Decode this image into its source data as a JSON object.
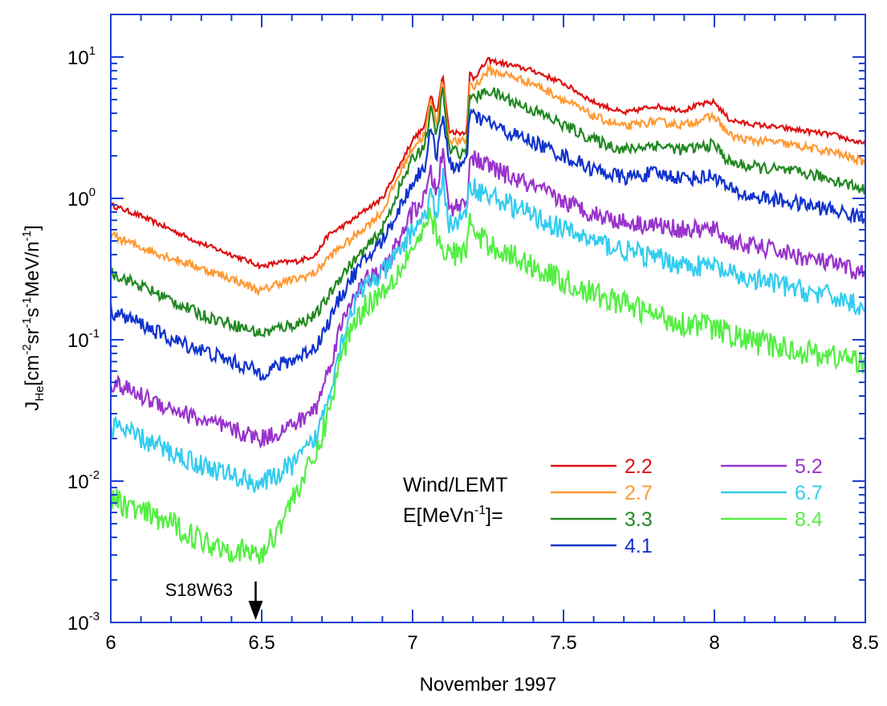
{
  "chart_data": {
    "type": "line",
    "title": "",
    "xlabel": "November 1997",
    "ylabel": {
      "main": "J",
      "sub": "He",
      "unit_parts": [
        "[cm",
        "-2",
        "sr",
        "-1",
        "s",
        "-1",
        "MeV/n",
        "-1",
        "]"
      ]
    },
    "xlim": [
      6,
      8.5
    ],
    "ylim": [
      0.001,
      20
    ],
    "yscale": "log",
    "x_ticks": [
      "6",
      "6.5",
      "7",
      "7.5",
      "8",
      "8.5"
    ],
    "x_tick_values": [
      6,
      6.5,
      7,
      7.5,
      8,
      8.5
    ],
    "y_ticks": [
      {
        "base": "10",
        "exp": "-3",
        "value": 0.001
      },
      {
        "base": "10",
        "exp": "-2",
        "value": 0.01
      },
      {
        "base": "10",
        "exp": "-1",
        "value": 0.1
      },
      {
        "base": "10",
        "exp": "0",
        "value": 1
      },
      {
        "base": "10",
        "exp": "1",
        "value": 10
      }
    ],
    "legend": {
      "placement": "lower-right",
      "title_line1": "Wind/LEMT",
      "title_line2_pre": "E[MeVn",
      "title_line2_sup": "-1",
      "title_line2_post": "]="
    },
    "annotation": {
      "text": "S18W63",
      "x": 6.48
    },
    "series": [
      {
        "name": "2.2",
        "color": "#dd1111",
        "x": [
          6.0,
          6.1,
          6.2,
          6.3,
          6.4,
          6.5,
          6.55,
          6.62,
          6.68,
          6.72,
          6.76,
          6.8,
          6.85,
          6.9,
          6.95,
          7.0,
          7.04,
          7.06,
          7.08,
          7.1,
          7.12,
          7.16,
          7.18,
          7.19,
          7.2,
          7.25,
          7.3,
          7.4,
          7.5,
          7.6,
          7.7,
          7.8,
          7.9,
          7.95,
          8.0,
          8.05,
          8.1,
          8.2,
          8.3,
          8.4,
          8.5
        ],
        "values": [
          0.9,
          0.75,
          0.6,
          0.48,
          0.4,
          0.33,
          0.35,
          0.36,
          0.4,
          0.55,
          0.62,
          0.7,
          0.85,
          1.0,
          1.6,
          2.6,
          3.2,
          5.5,
          4.0,
          7.5,
          3.0,
          2.9,
          3.0,
          8.0,
          7.0,
          9.5,
          9.0,
          8.0,
          6.5,
          4.8,
          4.0,
          4.5,
          4.2,
          4.6,
          4.8,
          3.6,
          3.4,
          3.2,
          3.0,
          2.8,
          2.4
        ]
      },
      {
        "name": "2.7",
        "color": "#ff9933",
        "x": [
          6.0,
          6.1,
          6.2,
          6.3,
          6.4,
          6.5,
          6.55,
          6.62,
          6.68,
          6.72,
          6.76,
          6.8,
          6.85,
          6.9,
          6.95,
          7.0,
          7.04,
          7.06,
          7.08,
          7.1,
          7.12,
          7.16,
          7.18,
          7.19,
          7.2,
          7.25,
          7.3,
          7.4,
          7.5,
          7.6,
          7.7,
          7.8,
          7.9,
          7.95,
          8.0,
          8.05,
          8.1,
          8.2,
          8.3,
          8.4,
          8.5
        ],
        "values": [
          0.55,
          0.45,
          0.38,
          0.32,
          0.27,
          0.22,
          0.25,
          0.27,
          0.3,
          0.38,
          0.45,
          0.52,
          0.65,
          0.8,
          1.4,
          2.3,
          2.8,
          5.0,
          3.4,
          7.0,
          2.6,
          2.5,
          2.6,
          7.0,
          6.0,
          8.0,
          7.6,
          6.5,
          5.0,
          3.8,
          3.2,
          3.5,
          3.3,
          3.6,
          3.8,
          2.8,
          2.6,
          2.5,
          2.3,
          2.1,
          1.8
        ]
      },
      {
        "name": "3.3",
        "color": "#228822",
        "x": [
          6.0,
          6.1,
          6.2,
          6.3,
          6.4,
          6.5,
          6.55,
          6.62,
          6.68,
          6.72,
          6.76,
          6.8,
          6.85,
          6.9,
          6.95,
          7.0,
          7.04,
          7.06,
          7.08,
          7.1,
          7.12,
          7.16,
          7.18,
          7.19,
          7.2,
          7.25,
          7.3,
          7.4,
          7.5,
          7.6,
          7.7,
          7.8,
          7.9,
          7.95,
          8.0,
          8.05,
          8.1,
          8.2,
          8.3,
          8.4,
          8.5
        ],
        "values": [
          0.3,
          0.24,
          0.19,
          0.15,
          0.13,
          0.11,
          0.12,
          0.13,
          0.15,
          0.2,
          0.28,
          0.35,
          0.45,
          0.6,
          1.1,
          1.9,
          2.4,
          4.2,
          2.8,
          6.0,
          2.2,
          2.1,
          2.2,
          6.0,
          5.0,
          5.8,
          5.2,
          4.2,
          3.3,
          2.6,
          2.2,
          2.4,
          2.2,
          2.3,
          2.4,
          1.8,
          1.7,
          1.6,
          1.5,
          1.35,
          1.15
        ]
      },
      {
        "name": "4.1",
        "color": "#1133cc",
        "x": [
          6.0,
          6.1,
          6.2,
          6.3,
          6.4,
          6.5,
          6.55,
          6.62,
          6.68,
          6.72,
          6.76,
          6.8,
          6.85,
          6.9,
          6.95,
          7.0,
          7.04,
          7.06,
          7.08,
          7.1,
          7.12,
          7.16,
          7.18,
          7.19,
          7.2,
          7.25,
          7.3,
          7.4,
          7.5,
          7.6,
          7.7,
          7.8,
          7.9,
          7.95,
          8.0,
          8.05,
          8.1,
          8.2,
          8.3,
          8.4,
          8.5
        ],
        "values": [
          0.16,
          0.13,
          0.1,
          0.085,
          0.07,
          0.058,
          0.065,
          0.075,
          0.09,
          0.13,
          0.2,
          0.28,
          0.38,
          0.5,
          0.8,
          1.3,
          1.7,
          3.0,
          2.0,
          4.2,
          1.7,
          1.7,
          1.8,
          4.3,
          3.8,
          3.5,
          3.0,
          2.5,
          2.0,
          1.6,
          1.4,
          1.5,
          1.4,
          1.4,
          1.45,
          1.15,
          1.05,
          0.98,
          0.9,
          0.82,
          0.72
        ]
      },
      {
        "name": "5.2",
        "color": "#9933cc",
        "x": [
          6.0,
          6.1,
          6.2,
          6.3,
          6.4,
          6.5,
          6.55,
          6.62,
          6.68,
          6.72,
          6.76,
          6.8,
          6.85,
          6.9,
          6.95,
          7.0,
          7.04,
          7.06,
          7.08,
          7.1,
          7.12,
          7.16,
          7.18,
          7.19,
          7.2,
          7.25,
          7.3,
          7.4,
          7.5,
          7.6,
          7.7,
          7.8,
          7.9,
          7.95,
          8.0,
          8.05,
          8.1,
          8.2,
          8.3,
          8.4,
          8.5
        ],
        "values": [
          0.05,
          0.04,
          0.033,
          0.027,
          0.023,
          0.02,
          0.022,
          0.026,
          0.033,
          0.06,
          0.12,
          0.2,
          0.27,
          0.3,
          0.48,
          0.8,
          1.0,
          1.5,
          1.1,
          2.2,
          0.85,
          0.9,
          0.95,
          2.0,
          1.9,
          1.7,
          1.5,
          1.2,
          0.95,
          0.78,
          0.68,
          0.65,
          0.6,
          0.6,
          0.6,
          0.5,
          0.47,
          0.43,
          0.38,
          0.34,
          0.29
        ]
      },
      {
        "name": "6.7",
        "color": "#33ccee",
        "x": [
          6.0,
          6.1,
          6.2,
          6.3,
          6.4,
          6.5,
          6.55,
          6.62,
          6.68,
          6.72,
          6.76,
          6.8,
          6.85,
          6.9,
          6.95,
          7.0,
          7.04,
          7.06,
          7.08,
          7.1,
          7.12,
          7.16,
          7.18,
          7.19,
          7.2,
          7.25,
          7.3,
          7.4,
          7.5,
          7.6,
          7.7,
          7.8,
          7.9,
          7.95,
          8.0,
          8.05,
          8.1,
          8.2,
          8.3,
          8.4,
          8.5
        ],
        "values": [
          0.025,
          0.02,
          0.016,
          0.013,
          0.011,
          0.0095,
          0.011,
          0.014,
          0.02,
          0.04,
          0.09,
          0.17,
          0.25,
          0.29,
          0.4,
          0.6,
          0.75,
          1.0,
          0.75,
          1.5,
          0.65,
          0.7,
          0.75,
          1.4,
          1.2,
          1.05,
          0.95,
          0.75,
          0.6,
          0.5,
          0.43,
          0.38,
          0.34,
          0.33,
          0.33,
          0.29,
          0.27,
          0.25,
          0.22,
          0.2,
          0.17
        ]
      },
      {
        "name": "8.4",
        "color": "#55ee44",
        "x": [
          6.0,
          6.1,
          6.2,
          6.3,
          6.4,
          6.5,
          6.55,
          6.62,
          6.68,
          6.72,
          6.76,
          6.8,
          6.85,
          6.9,
          6.95,
          7.0,
          7.04,
          7.06,
          7.08,
          7.1,
          7.12,
          7.16,
          7.18,
          7.19,
          7.2,
          7.25,
          7.3,
          7.4,
          7.5,
          7.6,
          7.7,
          7.8,
          7.9,
          7.95,
          8.0,
          8.05,
          8.1,
          8.2,
          8.3,
          8.4,
          8.5
        ],
        "values": [
          0.0075,
          0.006,
          0.005,
          0.0038,
          0.0033,
          0.003,
          0.0045,
          0.009,
          0.015,
          0.03,
          0.07,
          0.13,
          0.18,
          0.22,
          0.3,
          0.45,
          0.55,
          0.8,
          0.55,
          0.38,
          0.42,
          0.4,
          0.42,
          0.9,
          0.55,
          0.48,
          0.42,
          0.33,
          0.26,
          0.21,
          0.18,
          0.15,
          0.13,
          0.13,
          0.12,
          0.11,
          0.1,
          0.09,
          0.082,
          0.076,
          0.07
        ]
      }
    ]
  }
}
